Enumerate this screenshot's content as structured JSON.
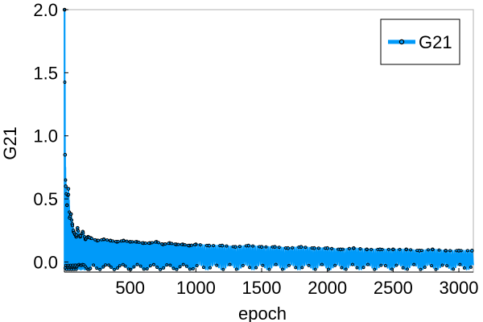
{
  "chart_data": {
    "type": "line",
    "xlabel": "epoch",
    "ylabel": "G21",
    "xlim": [
      0,
      3110
    ],
    "ylim": [
      -0.08,
      2.0
    ],
    "x_ticks": [
      500,
      1000,
      1500,
      2000,
      2500,
      3000
    ],
    "x_tick_labels": [
      "500",
      "1000",
      "1500",
      "2000",
      "2500",
      "3000"
    ],
    "y_ticks": [
      0.0,
      0.5,
      1.0,
      1.5,
      2.0
    ],
    "y_tick_labels": [
      "0.0",
      "0.5",
      "1.0",
      "1.5",
      "2.0"
    ],
    "grid": false,
    "legend_position": "top-right",
    "series": [
      {
        "name": "G21",
        "color": "#009af9",
        "marker": "circle",
        "x": [
          1,
          5,
          10,
          20,
          30,
          40,
          50,
          60,
          70,
          80,
          90,
          100,
          120,
          140,
          160,
          180,
          200,
          250,
          300,
          350,
          400,
          450,
          500,
          550,
          600,
          650,
          700,
          750,
          800,
          850,
          900,
          950,
          1000,
          1100,
          1200,
          1300,
          1400,
          1500,
          1600,
          1700,
          1800,
          1900,
          2000,
          2100,
          2200,
          2300,
          2400,
          2500,
          2600,
          2700,
          2800,
          2900,
          3000,
          3100
        ],
        "values": [
          2.0,
          0.85,
          0.6,
          0.45,
          0.58,
          0.35,
          0.38,
          0.3,
          0.24,
          0.22,
          0.2,
          0.27,
          0.2,
          0.24,
          0.18,
          0.2,
          0.19,
          0.17,
          0.18,
          0.17,
          0.16,
          0.17,
          0.16,
          0.16,
          0.15,
          0.15,
          0.16,
          0.14,
          0.15,
          0.14,
          0.14,
          0.13,
          0.14,
          0.13,
          0.13,
          0.12,
          0.13,
          0.12,
          0.12,
          0.11,
          0.12,
          0.11,
          0.11,
          0.1,
          0.11,
          0.1,
          0.1,
          0.1,
          0.1,
          0.09,
          0.1,
          0.09,
          0.09,
          0.09
        ],
        "oscillation_floor": -0.04
      }
    ]
  }
}
